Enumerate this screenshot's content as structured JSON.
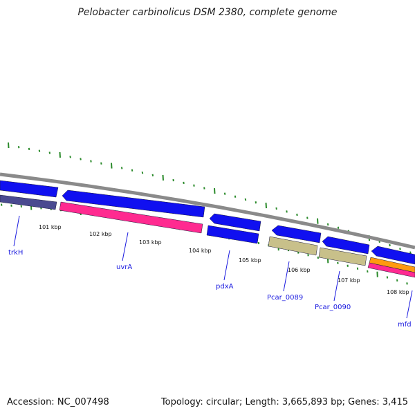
{
  "title": "Pelobacter carbinolicus DSM 2380, complete genome",
  "footer": {
    "accession": "Accession: NC_007498",
    "summary": "Topology: circular; Length: 3,665,893 bp; Genes: 3,415"
  },
  "colors": {
    "backbone": "#8a8a8a",
    "tick": "#2a8a2a",
    "cds": "#1010f0",
    "trna_dark": "#4a4a90",
    "pink": "#ff2a90",
    "olive": "#c8c08a",
    "orange": "#ff9a10",
    "label": "#1a1adf"
  },
  "kbp_labels": [
    "101 kbp",
    "102 kbp",
    "103 kbp",
    "104 kbp",
    "105 kbp",
    "106 kbp",
    "107 kbp",
    "108 kbp"
  ],
  "gene_labels": [
    "trkH",
    "uvrA",
    "pdxA",
    "Pcar_0089",
    "Pcar_0090",
    "mfd"
  ]
}
